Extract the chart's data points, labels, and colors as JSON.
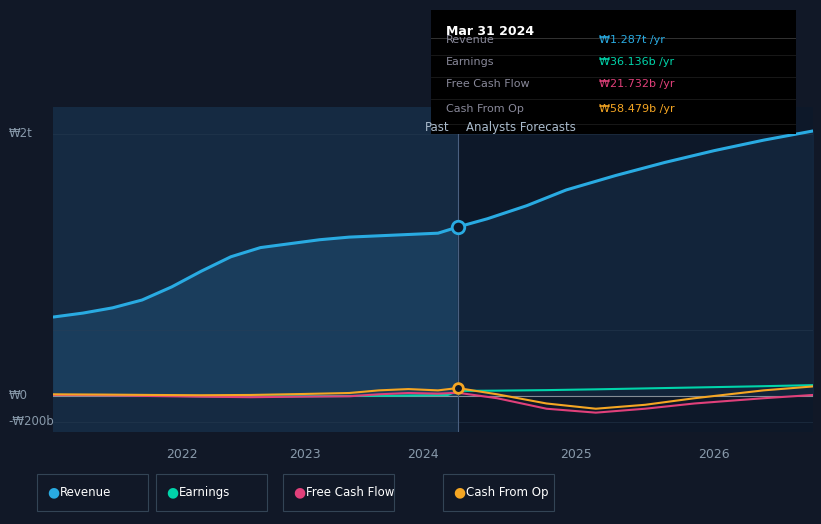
{
  "bg_color": "#111827",
  "chart_bg_dark": "#0d1829",
  "chart_bg_light": "#0d1829",
  "past_fill": "#152540",
  "future_fill": "#0f1e35",
  "revenue_color": "#29abe2",
  "earnings_color": "#00d4aa",
  "fcf_color": "#e0407a",
  "cfo_color": "#f5a623",
  "tooltip_bg": "#000000",
  "tooltip_date": "Mar 31 2024",
  "tooltip_rows": [
    [
      "Revenue",
      "₩1.287t /yr",
      "#29abe2"
    ],
    [
      "Earnings",
      "₩36.136b /yr",
      "#00d4aa"
    ],
    [
      "Free Cash Flow",
      "₩21.732b /yr",
      "#e0407a"
    ],
    [
      "Cash From Op",
      "₩58.479b /yr",
      "#f5a623"
    ]
  ],
  "past_label": "Past",
  "forecast_label": "Analysts Forecasts",
  "ylabel_top": "₩2t",
  "ylabel_zero": "₩0",
  "ylabel_neg": "-₩200b",
  "xtick_labels": [
    "2022",
    "2023",
    "2024",
    "2025",
    "2026"
  ],
  "xtick_pos": [
    1.3,
    2.55,
    3.75,
    5.3,
    6.7
  ],
  "xmin": 0.0,
  "xmax": 7.7,
  "ymin": -0.28,
  "ymax": 2.2,
  "split_x": 4.1,
  "revenue_x": [
    0.0,
    0.3,
    0.6,
    0.9,
    1.2,
    1.5,
    1.8,
    2.1,
    2.4,
    2.7,
    3.0,
    3.3,
    3.6,
    3.9,
    4.1,
    4.4,
    4.8,
    5.2,
    5.7,
    6.2,
    6.7,
    7.2,
    7.7
  ],
  "revenue_y": [
    0.6,
    0.63,
    0.67,
    0.73,
    0.83,
    0.95,
    1.06,
    1.13,
    1.16,
    1.19,
    1.21,
    1.22,
    1.23,
    1.24,
    1.287,
    1.35,
    1.45,
    1.57,
    1.68,
    1.78,
    1.87,
    1.95,
    2.02
  ],
  "earnings_x": [
    0.0,
    0.5,
    1.0,
    1.5,
    2.0,
    2.5,
    3.0,
    3.5,
    4.0,
    4.1,
    4.5,
    5.0,
    5.5,
    6.0,
    6.5,
    7.2,
    7.7
  ],
  "earnings_y": [
    0.005,
    0.003,
    0.0,
    -0.005,
    -0.008,
    -0.005,
    -0.003,
    0.0,
    0.005,
    0.036,
    0.038,
    0.042,
    0.048,
    0.055,
    0.062,
    0.072,
    0.08
  ],
  "fcf_x": [
    0.0,
    0.5,
    1.0,
    1.5,
    2.0,
    2.5,
    3.0,
    3.3,
    3.6,
    3.9,
    4.1,
    4.5,
    5.0,
    5.5,
    6.0,
    6.5,
    7.2,
    7.7
  ],
  "fcf_y": [
    0.005,
    0.002,
    -0.003,
    -0.008,
    -0.012,
    -0.008,
    -0.005,
    0.01,
    0.02,
    0.015,
    0.022,
    -0.02,
    -0.1,
    -0.13,
    -0.1,
    -0.06,
    -0.02,
    0.005
  ],
  "cfo_x": [
    0.0,
    0.5,
    1.0,
    1.5,
    2.0,
    2.5,
    3.0,
    3.3,
    3.6,
    3.9,
    4.1,
    4.5,
    5.0,
    5.5,
    6.0,
    6.5,
    7.2,
    7.7
  ],
  "cfo_y": [
    0.01,
    0.008,
    0.005,
    0.003,
    0.005,
    0.012,
    0.02,
    0.04,
    0.05,
    0.04,
    0.058,
    0.01,
    -0.06,
    -0.1,
    -0.07,
    -0.02,
    0.04,
    0.07
  ],
  "legend_items": [
    [
      "Revenue",
      "#29abe2"
    ],
    [
      "Earnings",
      "#00d4aa"
    ],
    [
      "Free Cash Flow",
      "#e0407a"
    ],
    [
      "Cash From Op",
      "#f5a623"
    ]
  ]
}
